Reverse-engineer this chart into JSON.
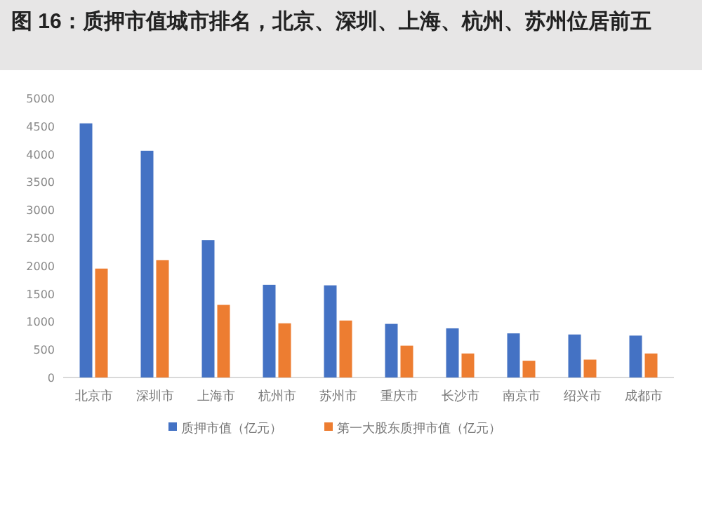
{
  "chart_data": {
    "type": "bar",
    "title": "图 16：质押市值城市排名，北京、深圳、上海、杭州、苏州位居前五",
    "categories": [
      "北京市",
      "深圳市",
      "上海市",
      "杭州市",
      "苏州市",
      "重庆市",
      "长沙市",
      "南京市",
      "绍兴市",
      "成都市"
    ],
    "series": [
      {
        "name": "质押市值（亿元）",
        "color": "#4472c4",
        "values": [
          4550,
          4060,
          2460,
          1660,
          1650,
          960,
          880,
          790,
          770,
          750
        ]
      },
      {
        "name": "第一大股东质押市值（亿元）",
        "color": "#ed7d31",
        "values": [
          1950,
          2100,
          1300,
          970,
          1020,
          570,
          430,
          300,
          320,
          430
        ]
      }
    ],
    "ylim": [
      0,
      5000
    ],
    "yticks": [
      0,
      500,
      1000,
      1500,
      2000,
      2500,
      3000,
      3500,
      4000,
      4500,
      5000
    ],
    "grid": false,
    "legend": "bottom"
  }
}
